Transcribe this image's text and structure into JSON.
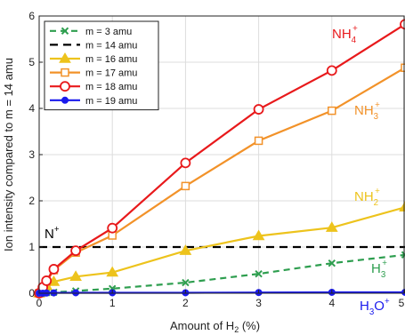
{
  "chart_data": {
    "type": "line",
    "xlabel": "Amount of H",
    "xlabel_sub": "2",
    "xlabel_unit": " (%)",
    "ylabel": "Ion intensity compared to m = 14 amu",
    "xlim": [
      0,
      5
    ],
    "ylim": [
      0,
      6
    ],
    "xticks": [
      0,
      1,
      2,
      3,
      4,
      5
    ],
    "yticks": [
      0,
      1,
      2,
      3,
      4,
      5,
      6
    ],
    "grid": true,
    "legend_position": "top-left",
    "series": [
      {
        "name": "m = 3 amu",
        "color": "#2e9e4f",
        "dash": "7,5",
        "marker": "x",
        "x": [
          0,
          0.05,
          0.1,
          0.2,
          0.5,
          1,
          2,
          3,
          4,
          5
        ],
        "y": [
          0,
          0.005,
          0.01,
          0.02,
          0.05,
          0.1,
          0.23,
          0.42,
          0.65,
          0.83
        ]
      },
      {
        "name": "m = 14 amu",
        "color": "#000000",
        "dash": "9,6",
        "marker": "none",
        "x": [
          0,
          5
        ],
        "y": [
          1,
          1
        ]
      },
      {
        "name": "m = 16 amu",
        "color": "#edc31c",
        "dash": "",
        "marker": "triangle",
        "x": [
          0,
          0.05,
          0.1,
          0.2,
          0.5,
          1,
          2,
          3,
          4,
          5
        ],
        "y": [
          0,
          0.08,
          0.16,
          0.25,
          0.36,
          0.45,
          0.92,
          1.24,
          1.42,
          1.86
        ]
      },
      {
        "name": "m = 17 amu",
        "color": "#f29229",
        "dash": "",
        "marker": "square",
        "x": [
          0,
          0.05,
          0.1,
          0.2,
          0.5,
          1,
          2,
          3,
          4,
          5
        ],
        "y": [
          0,
          0.12,
          0.25,
          0.5,
          0.88,
          1.25,
          2.32,
          3.3,
          3.95,
          4.88
        ]
      },
      {
        "name": "m = 18 amu",
        "color": "#e8191b",
        "dash": "",
        "marker": "circle",
        "x": [
          0,
          0.05,
          0.1,
          0.2,
          0.5,
          1,
          2,
          3,
          4,
          5
        ],
        "y": [
          0,
          0.13,
          0.27,
          0.52,
          0.92,
          1.41,
          2.82,
          3.98,
          4.82,
          5.82
        ]
      },
      {
        "name": "m = 19 amu",
        "color": "#1a1aed",
        "dash": "",
        "marker": "dot",
        "x": [
          0,
          0.05,
          0.1,
          0.2,
          0.5,
          1,
          2,
          3,
          4,
          5
        ],
        "y": [
          0,
          0,
          0.005,
          0.008,
          0.01,
          0.01,
          0.01,
          0.015,
          0.02,
          0.02
        ]
      }
    ],
    "annotations": [
      {
        "base": "NH",
        "sub": "4",
        "sup": "+",
        "color": "#e8191b"
      },
      {
        "base": "NH",
        "sub": "3",
        "sup": "+",
        "color": "#f29229"
      },
      {
        "base": "NH",
        "sub": "2",
        "sup": "+",
        "color": "#edc31c"
      },
      {
        "base": "N",
        "sub": "",
        "sup": "+",
        "color": "#000000"
      },
      {
        "base": "H",
        "sub": "3",
        "sup": "+",
        "color": "#2e9e4f"
      },
      {
        "base": "H",
        "sub": "3",
        "mid": "O",
        "sup": "+",
        "color": "#1a1aed"
      }
    ]
  }
}
